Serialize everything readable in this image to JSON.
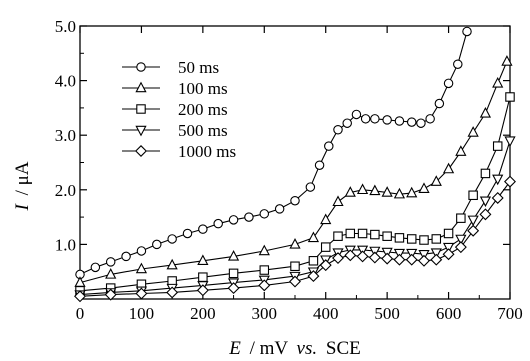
{
  "chart_data": {
    "type": "line",
    "title": "",
    "xlabel": {
      "var": "E",
      "unit": "/ mV",
      "vs": "vs.",
      "ref": "SCE"
    },
    "ylabel": {
      "var": "I",
      "unit": "/ μA"
    },
    "xlim": [
      0,
      700
    ],
    "ylim": [
      0,
      5.0
    ],
    "x_ticks": [
      0,
      100,
      200,
      300,
      400,
      500,
      600,
      700
    ],
    "x_tick_labels": [
      "0",
      "100",
      "200",
      "300",
      "400",
      "500",
      "600",
      "700"
    ],
    "y_ticks": [
      1.0,
      2.0,
      3.0,
      4.0,
      5.0
    ],
    "y_tick_labels": [
      "1.0",
      "2.0",
      "3.0",
      "4.0",
      "5.0"
    ],
    "grid": false,
    "legend_position": "top-left",
    "series": [
      {
        "name": "50 ms",
        "marker": "circle",
        "x": [
          0,
          25,
          50,
          75,
          100,
          125,
          150,
          175,
          200,
          225,
          250,
          275,
          300,
          325,
          350,
          375,
          390,
          405,
          420,
          435,
          450,
          465,
          480,
          500,
          520,
          540,
          555,
          570,
          585,
          600,
          615,
          630
        ],
        "y": [
          0.45,
          0.58,
          0.68,
          0.78,
          0.88,
          1.0,
          1.1,
          1.2,
          1.28,
          1.38,
          1.45,
          1.5,
          1.56,
          1.65,
          1.8,
          2.05,
          2.45,
          2.8,
          3.1,
          3.22,
          3.38,
          3.3,
          3.3,
          3.28,
          3.26,
          3.24,
          3.22,
          3.3,
          3.58,
          3.95,
          4.3,
          4.9
        ]
      },
      {
        "name": "100 ms",
        "marker": "triangle-up",
        "x": [
          0,
          50,
          100,
          150,
          200,
          250,
          300,
          350,
          380,
          400,
          420,
          440,
          460,
          480,
          500,
          520,
          540,
          560,
          580,
          600,
          620,
          640,
          660,
          680,
          695
        ],
        "y": [
          0.3,
          0.45,
          0.55,
          0.62,
          0.7,
          0.78,
          0.88,
          1.0,
          1.12,
          1.45,
          1.78,
          1.95,
          2.0,
          1.98,
          1.95,
          1.92,
          1.94,
          2.02,
          2.15,
          2.38,
          2.7,
          3.05,
          3.4,
          3.95,
          4.35
        ]
      },
      {
        "name": "200 ms",
        "marker": "square",
        "x": [
          0,
          50,
          100,
          150,
          200,
          250,
          300,
          350,
          380,
          400,
          420,
          440,
          460,
          480,
          500,
          520,
          540,
          560,
          580,
          600,
          620,
          640,
          660,
          680,
          700
        ],
        "y": [
          0.15,
          0.2,
          0.27,
          0.33,
          0.4,
          0.47,
          0.53,
          0.6,
          0.7,
          0.95,
          1.15,
          1.2,
          1.2,
          1.18,
          1.15,
          1.12,
          1.1,
          1.08,
          1.1,
          1.2,
          1.48,
          1.9,
          2.3,
          2.8,
          3.7
        ]
      },
      {
        "name": "500 ms",
        "marker": "triangle-down",
        "x": [
          0,
          50,
          100,
          150,
          200,
          250,
          300,
          350,
          380,
          400,
          420,
          440,
          460,
          480,
          500,
          520,
          540,
          560,
          580,
          600,
          620,
          640,
          660,
          680,
          700
        ],
        "y": [
          0.08,
          0.12,
          0.15,
          0.2,
          0.25,
          0.3,
          0.35,
          0.42,
          0.5,
          0.72,
          0.85,
          0.9,
          0.9,
          0.88,
          0.86,
          0.84,
          0.84,
          0.82,
          0.85,
          0.95,
          1.1,
          1.45,
          1.8,
          2.2,
          2.9
        ]
      },
      {
        "name": "1000 ms",
        "marker": "diamond",
        "x": [
          0,
          50,
          100,
          150,
          200,
          250,
          300,
          350,
          380,
          400,
          420,
          440,
          460,
          480,
          500,
          520,
          540,
          560,
          580,
          600,
          620,
          640,
          660,
          680,
          700
        ],
        "y": [
          0.05,
          0.08,
          0.1,
          0.12,
          0.16,
          0.2,
          0.25,
          0.32,
          0.42,
          0.62,
          0.75,
          0.8,
          0.78,
          0.76,
          0.74,
          0.72,
          0.72,
          0.7,
          0.72,
          0.82,
          0.95,
          1.25,
          1.55,
          1.85,
          2.15
        ]
      }
    ]
  }
}
